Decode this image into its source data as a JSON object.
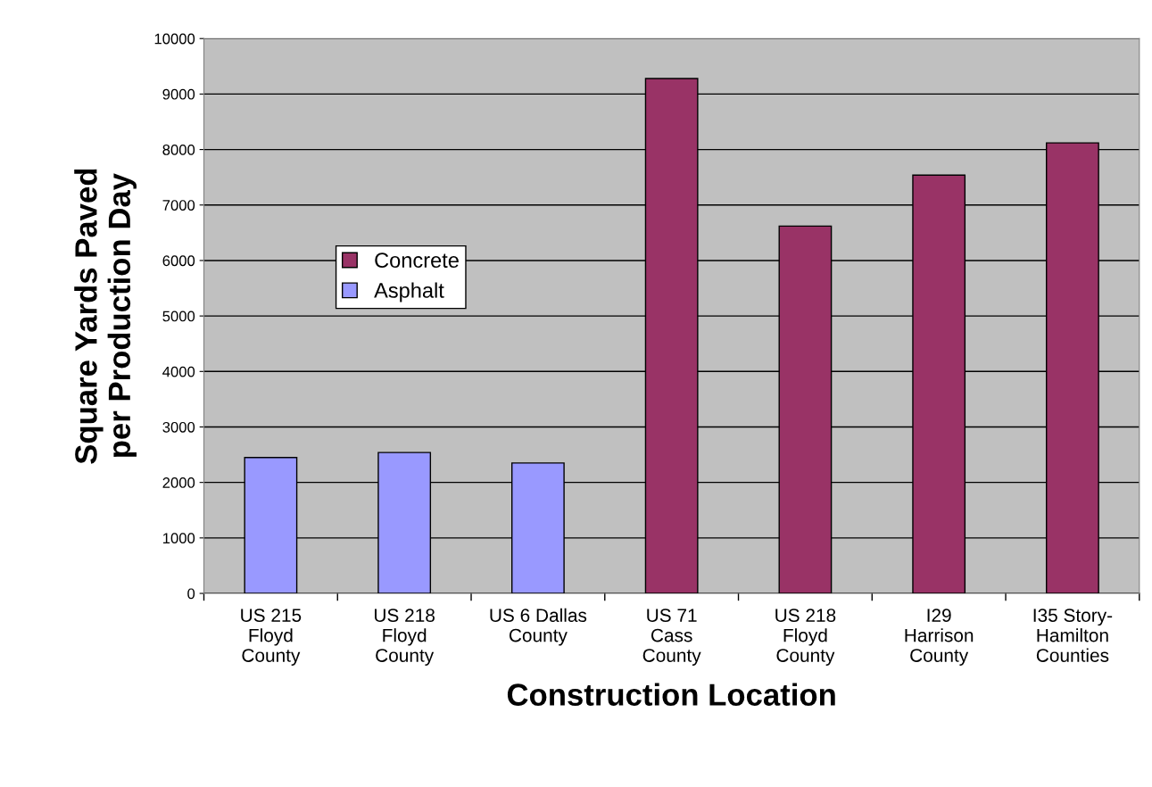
{
  "chart_data": {
    "type": "bar",
    "xlabel": "Construction Location",
    "ylabel": "Square Yards Paved\nper Production Day",
    "categories": [
      "US 215\nFloyd\nCounty",
      "US 218\nFloyd\nCounty",
      "US 6 Dallas\nCounty",
      "US 71\nCass\nCounty",
      "US 218\nFloyd\nCounty",
      "I29\nHarrison\nCounty",
      "I35 Story-\nHamilton\nCounties"
    ],
    "series": [
      {
        "name": "Concrete",
        "color": "#993366",
        "values": [
          null,
          null,
          null,
          9280,
          6620,
          7540,
          8120
        ]
      },
      {
        "name": "Asphalt",
        "color": "#9999ff",
        "values": [
          2450,
          2540,
          2350,
          null,
          null,
          null,
          null
        ]
      }
    ],
    "ylim": [
      0,
      10000
    ],
    "yticks": [
      0,
      1000,
      2000,
      3000,
      4000,
      5000,
      6000,
      7000,
      8000,
      9000,
      10000
    ],
    "grid": "y",
    "legend": "center left"
  }
}
